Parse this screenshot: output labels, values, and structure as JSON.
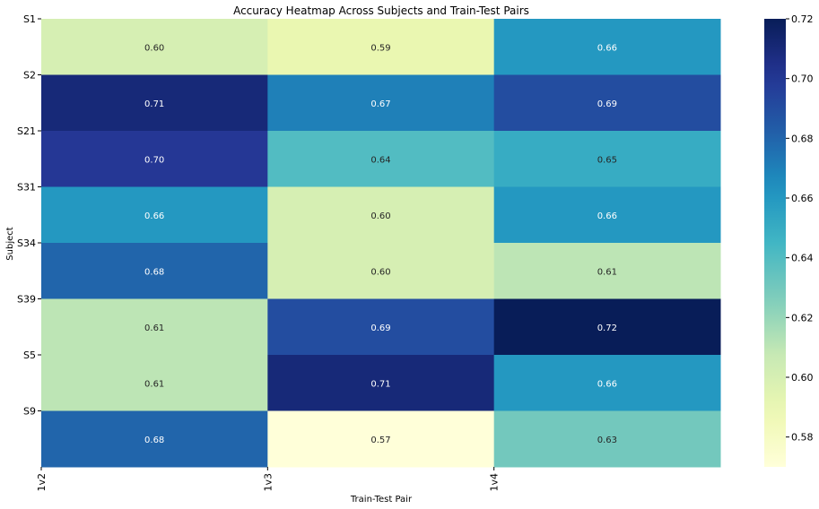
{
  "chart_data": {
    "type": "heatmap",
    "title": "Accuracy Heatmap Across Subjects and Train-Test Pairs",
    "xlabel": "Train-Test Pair",
    "ylabel": "Subject",
    "x_categories": [
      "1v2",
      "1v3",
      "1v4"
    ],
    "y_categories": [
      "S1",
      "S2",
      "S21",
      "S31",
      "S34",
      "S39",
      "S5",
      "S9"
    ],
    "values": [
      [
        0.6,
        0.59,
        0.66
      ],
      [
        0.71,
        0.67,
        0.69
      ],
      [
        0.7,
        0.64,
        0.65
      ],
      [
        0.66,
        0.6,
        0.66
      ],
      [
        0.68,
        0.6,
        0.61
      ],
      [
        0.61,
        0.69,
        0.72
      ],
      [
        0.61,
        0.71,
        0.66
      ],
      [
        0.68,
        0.57,
        0.63
      ]
    ],
    "value_labels": [
      [
        "0.60",
        "0.59",
        "0.66"
      ],
      [
        "0.71",
        "0.67",
        "0.69"
      ],
      [
        "0.70",
        "0.64",
        "0.65"
      ],
      [
        "0.66",
        "0.60",
        "0.66"
      ],
      [
        "0.68",
        "0.60",
        "0.61"
      ],
      [
        "0.61",
        "0.69",
        "0.72"
      ],
      [
        "0.61",
        "0.71",
        "0.66"
      ],
      [
        "0.68",
        "0.57",
        "0.63"
      ]
    ],
    "colormap": "YlGnBu",
    "vmin": 0.57,
    "vmax": 0.72,
    "colorbar_ticks": [
      0.58,
      0.6,
      0.62,
      0.64,
      0.66,
      0.68,
      0.7,
      0.72
    ],
    "colorbar_tick_labels": [
      "0.58",
      "0.60",
      "0.62",
      "0.64",
      "0.66",
      "0.68",
      "0.70",
      "0.72"
    ],
    "grid": false
  }
}
